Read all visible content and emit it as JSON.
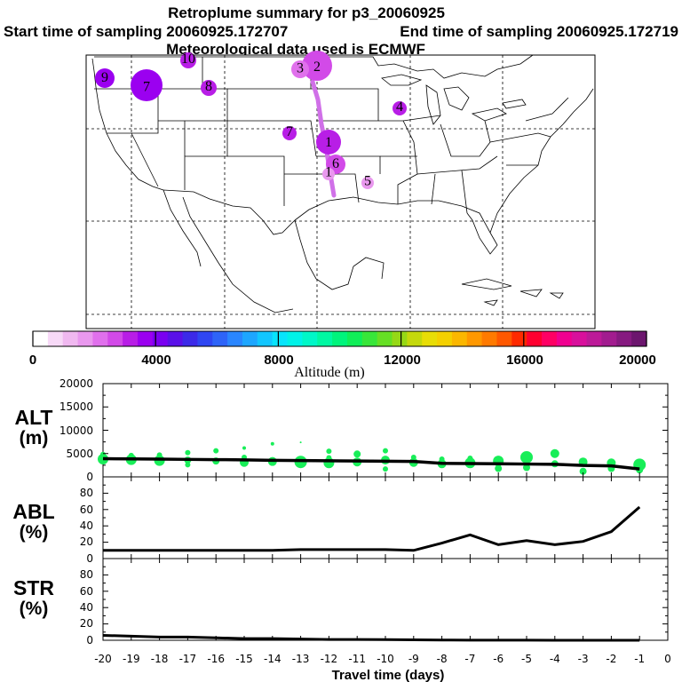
{
  "header": {
    "title": "Retroplume summary for p3_20060925",
    "start_label": "Start time of sampling 20060925.172707",
    "end_label": "End time of sampling 20060925.172719",
    "met_label": "Meteorological data used is ECMWF"
  },
  "colorbar": {
    "label": "Altitude (m)",
    "ticks": [
      "0",
      "4000",
      "8000",
      "12000",
      "16000",
      "20000"
    ],
    "colors": [
      "#ffffff",
      "#f7d9f7",
      "#f0b8f0",
      "#e998ee",
      "#e070ec",
      "#d24ae8",
      "#b81ee6",
      "#9b00f0",
      "#7a00f0",
      "#5a10e8",
      "#3c2ae8",
      "#2f46f2",
      "#2e64f8",
      "#2a86ff",
      "#1ea6ff",
      "#12c6ff",
      "#08e4fb",
      "#00f2e8",
      "#00f7c8",
      "#00f8a2",
      "#00f47c",
      "#10ee58",
      "#38e63a",
      "#66df24",
      "#96d816",
      "#c4d80c",
      "#e8dd06",
      "#f4d000",
      "#fbb700",
      "#ff9800",
      "#ff7a00",
      "#ff5800",
      "#ff2a00",
      "#ff0030",
      "#ff0064",
      "#f00090",
      "#d8109c",
      "#bc1a98",
      "#a21c8f",
      "#861a80",
      "#6c166e"
    ]
  },
  "map": {
    "markers": [
      {
        "label": "9",
        "alt": 3800
      },
      {
        "label": "7",
        "alt": 3600
      },
      {
        "label": "8",
        "alt": 3200
      },
      {
        "label": "10",
        "alt": 3300
      },
      {
        "label": "2",
        "alt": 2600
      },
      {
        "label": "3",
        "alt": 2100
      },
      {
        "label": "4",
        "alt": 3300
      },
      {
        "label": "7",
        "alt": 3100
      },
      {
        "label": "1",
        "alt": 3300
      },
      {
        "label": "6",
        "alt": 2700
      },
      {
        "label": "5",
        "alt": 1900
      },
      {
        "label": "1",
        "alt": 1500
      }
    ],
    "trail_color": "#d070e8"
  },
  "chart_data": [
    {
      "type": "line",
      "panel": "ALT",
      "ylabel_line1": "ALT",
      "ylabel_line2": "(m)",
      "ylim": [
        0,
        20000
      ],
      "yticks": [
        "0",
        "5000",
        "10000",
        "15000",
        "20000"
      ],
      "x": [
        -20,
        -19,
        -18,
        -17,
        -16,
        -15,
        -14,
        -13,
        -12,
        -11,
        -10,
        -9,
        -8,
        -7,
        -6,
        -5,
        -4,
        -3,
        -2,
        -1
      ],
      "series": [
        {
          "name": "mean altitude",
          "values": [
            3900,
            3850,
            3800,
            3750,
            3700,
            3650,
            3550,
            3500,
            3450,
            3400,
            3350,
            3300,
            2900,
            2850,
            2800,
            2750,
            2700,
            2450,
            2350,
            1700
          ]
        }
      ],
      "points": [
        {
          "x": -20,
          "y": 3800,
          "r": 6
        },
        {
          "x": -20,
          "y": 4800,
          "r": 3
        },
        {
          "x": -19,
          "y": 3700,
          "r": 6
        },
        {
          "x": -19,
          "y": 4600,
          "r": 3
        },
        {
          "x": -18,
          "y": 3500,
          "r": 6
        },
        {
          "x": -18,
          "y": 4700,
          "r": 3
        },
        {
          "x": -17,
          "y": 3600,
          "r": 4
        },
        {
          "x": -17,
          "y": 5200,
          "r": 3
        },
        {
          "x": -17,
          "y": 2600,
          "r": 3
        },
        {
          "x": -16,
          "y": 3400,
          "r": 4
        },
        {
          "x": -16,
          "y": 5600,
          "r": 3
        },
        {
          "x": -15,
          "y": 3100,
          "r": 5
        },
        {
          "x": -15,
          "y": 6200,
          "r": 2
        },
        {
          "x": -15,
          "y": 4200,
          "r": 3
        },
        {
          "x": -14,
          "y": 3300,
          "r": 5
        },
        {
          "x": -14,
          "y": 7100,
          "r": 2
        },
        {
          "x": -13,
          "y": 3200,
          "r": 7
        },
        {
          "x": -13,
          "y": 7400,
          "r": 1
        },
        {
          "x": -12,
          "y": 3000,
          "r": 6
        },
        {
          "x": -12,
          "y": 5500,
          "r": 3
        },
        {
          "x": -12,
          "y": 4100,
          "r": 3
        },
        {
          "x": -11,
          "y": 3200,
          "r": 5
        },
        {
          "x": -11,
          "y": 4900,
          "r": 4
        },
        {
          "x": -10,
          "y": 3600,
          "r": 5
        },
        {
          "x": -10,
          "y": 5600,
          "r": 3
        },
        {
          "x": -10,
          "y": 1700,
          "r": 3
        },
        {
          "x": -9,
          "y": 3100,
          "r": 5
        },
        {
          "x": -9,
          "y": 4200,
          "r": 3
        },
        {
          "x": -8,
          "y": 2800,
          "r": 5
        },
        {
          "x": -8,
          "y": 3800,
          "r": 3
        },
        {
          "x": -7,
          "y": 3000,
          "r": 6
        },
        {
          "x": -7,
          "y": 4000,
          "r": 3
        },
        {
          "x": -6,
          "y": 3400,
          "r": 6
        },
        {
          "x": -6,
          "y": 1800,
          "r": 4
        },
        {
          "x": -5,
          "y": 4200,
          "r": 7
        },
        {
          "x": -5,
          "y": 2000,
          "r": 4
        },
        {
          "x": -4,
          "y": 5000,
          "r": 5
        },
        {
          "x": -4,
          "y": 2800,
          "r": 4
        },
        {
          "x": -3,
          "y": 3200,
          "r": 5
        },
        {
          "x": -3,
          "y": 1200,
          "r": 4
        },
        {
          "x": -2,
          "y": 3000,
          "r": 5
        },
        {
          "x": -2,
          "y": 1800,
          "r": 4
        },
        {
          "x": -1,
          "y": 2600,
          "r": 7
        },
        {
          "x": -1,
          "y": 1500,
          "r": 4
        }
      ],
      "point_color": "#18ee58"
    },
    {
      "type": "line",
      "panel": "ABL",
      "ylabel_line1": "ABL",
      "ylabel_line2": "(%)",
      "ylim": [
        0,
        100
      ],
      "yticks": [
        "0",
        "20",
        "40",
        "60",
        "80"
      ],
      "x": [
        -20,
        -19,
        -18,
        -17,
        -16,
        -15,
        -14,
        -13,
        -12,
        -11,
        -10,
        -9,
        -8,
        -7,
        -6,
        -5,
        -4,
        -3,
        -2,
        -1
      ],
      "series": [
        {
          "name": "ABL fraction",
          "values": [
            10,
            10,
            10,
            10,
            10,
            10,
            10,
            11,
            11,
            11,
            11,
            10,
            19,
            29,
            17,
            22,
            17,
            21,
            33,
            63
          ]
        }
      ]
    },
    {
      "type": "line",
      "panel": "STR",
      "ylabel_line1": "STR",
      "ylabel_line2": "(%)",
      "ylim": [
        0,
        100
      ],
      "yticks": [
        "0",
        "20",
        "40",
        "60",
        "80"
      ],
      "xlabel": "Travel time (days)",
      "xticks": [
        "-20",
        "-19",
        "-18",
        "-17",
        "-16",
        "-15",
        "-14",
        "-13",
        "-12",
        "-11",
        "-10",
        "-9",
        "-8",
        "-7",
        "-6",
        "-5",
        "-4",
        "-3",
        "-2",
        "-1",
        "0"
      ],
      "x": [
        -20,
        -19,
        -18,
        -17,
        -16,
        -15,
        -14,
        -13,
        -12,
        -11,
        -10,
        -9,
        -8,
        -7,
        -6,
        -5,
        -4,
        -3,
        -2,
        -1
      ],
      "series": [
        {
          "name": "stratosphere fraction",
          "values": [
            6,
            5,
            4,
            4,
            3,
            2,
            2,
            1.5,
            1,
            1,
            0.8,
            0.5,
            0.3,
            0.2,
            0.1,
            0.1,
            0,
            0,
            0,
            0
          ]
        }
      ]
    }
  ]
}
